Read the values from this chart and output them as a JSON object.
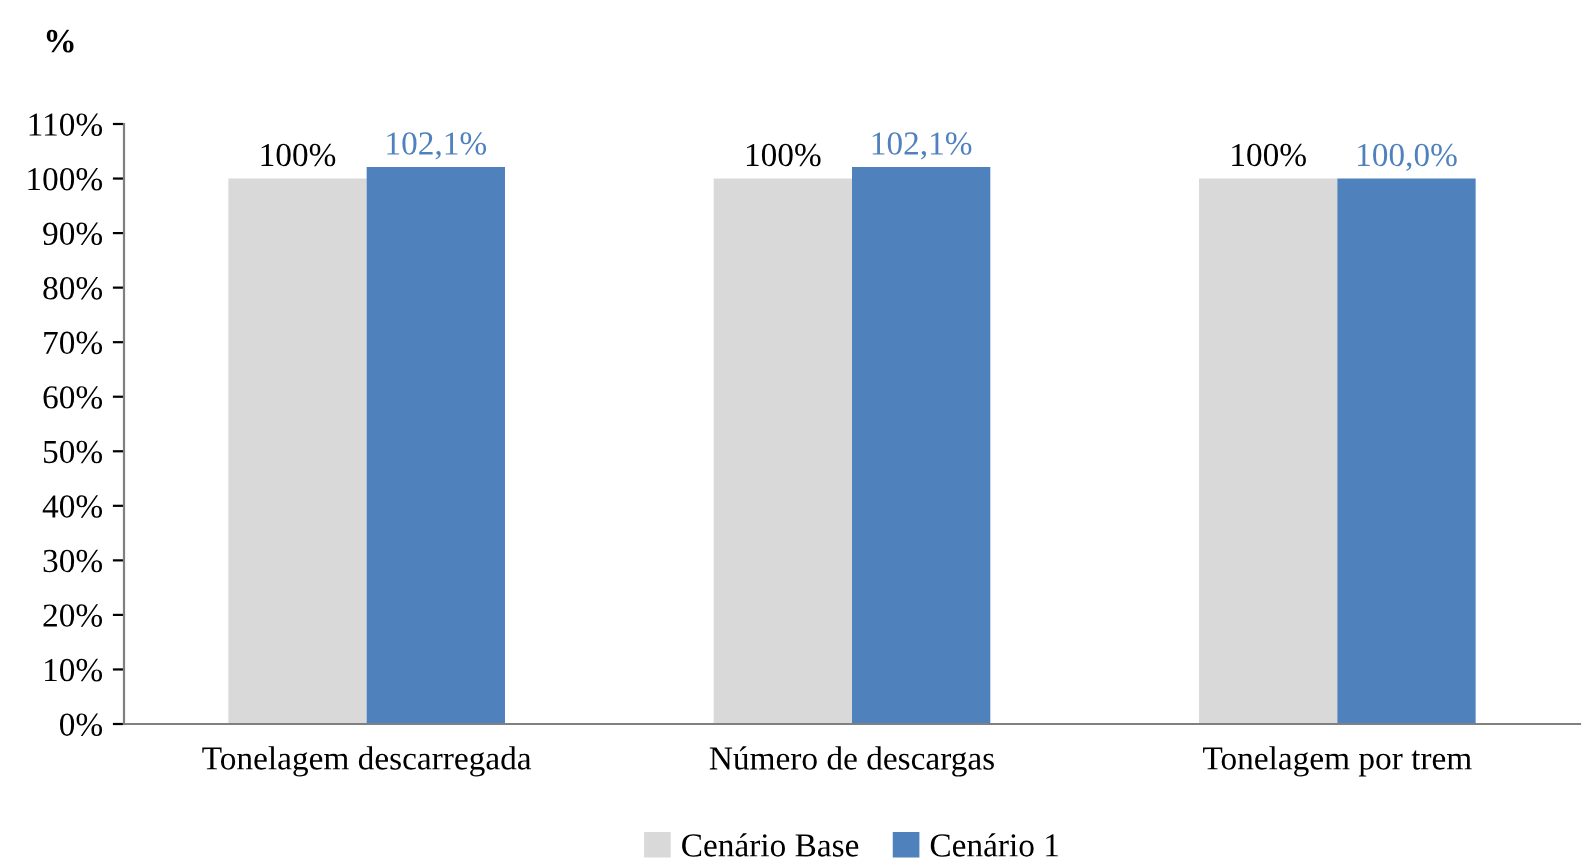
{
  "chart_data": {
    "type": "bar",
    "ylabel": "%",
    "categories": [
      "Tonelagem descarregada",
      "Número de descargas",
      "Tonelagem por trem"
    ],
    "series": [
      {
        "name": "Cenário Base",
        "color": "#d9d9d9",
        "values": [
          100,
          100,
          100
        ],
        "value_labels": [
          "100%",
          "100%",
          "100%"
        ]
      },
      {
        "name": "Cenário 1",
        "color": "#4f81bd",
        "values": [
          102.1,
          102.1,
          100.0
        ],
        "value_labels": [
          "102,1%",
          "102,1%",
          "100,0%"
        ]
      }
    ],
    "ylim": [
      0,
      110
    ],
    "yticks": [
      {
        "value": 0,
        "label": "0%"
      },
      {
        "value": 10,
        "label": "10%"
      },
      {
        "value": 20,
        "label": "20%"
      },
      {
        "value": 30,
        "label": "30%"
      },
      {
        "value": 40,
        "label": "40%"
      },
      {
        "value": 50,
        "label": "50%"
      },
      {
        "value": 60,
        "label": "60%"
      },
      {
        "value": 70,
        "label": "70%"
      },
      {
        "value": 80,
        "label": "80%"
      },
      {
        "value": 90,
        "label": "90%"
      },
      {
        "value": 100,
        "label": "100%"
      },
      {
        "value": 110,
        "label": "110%"
      }
    ],
    "legend": "bottom",
    "grid": false
  }
}
